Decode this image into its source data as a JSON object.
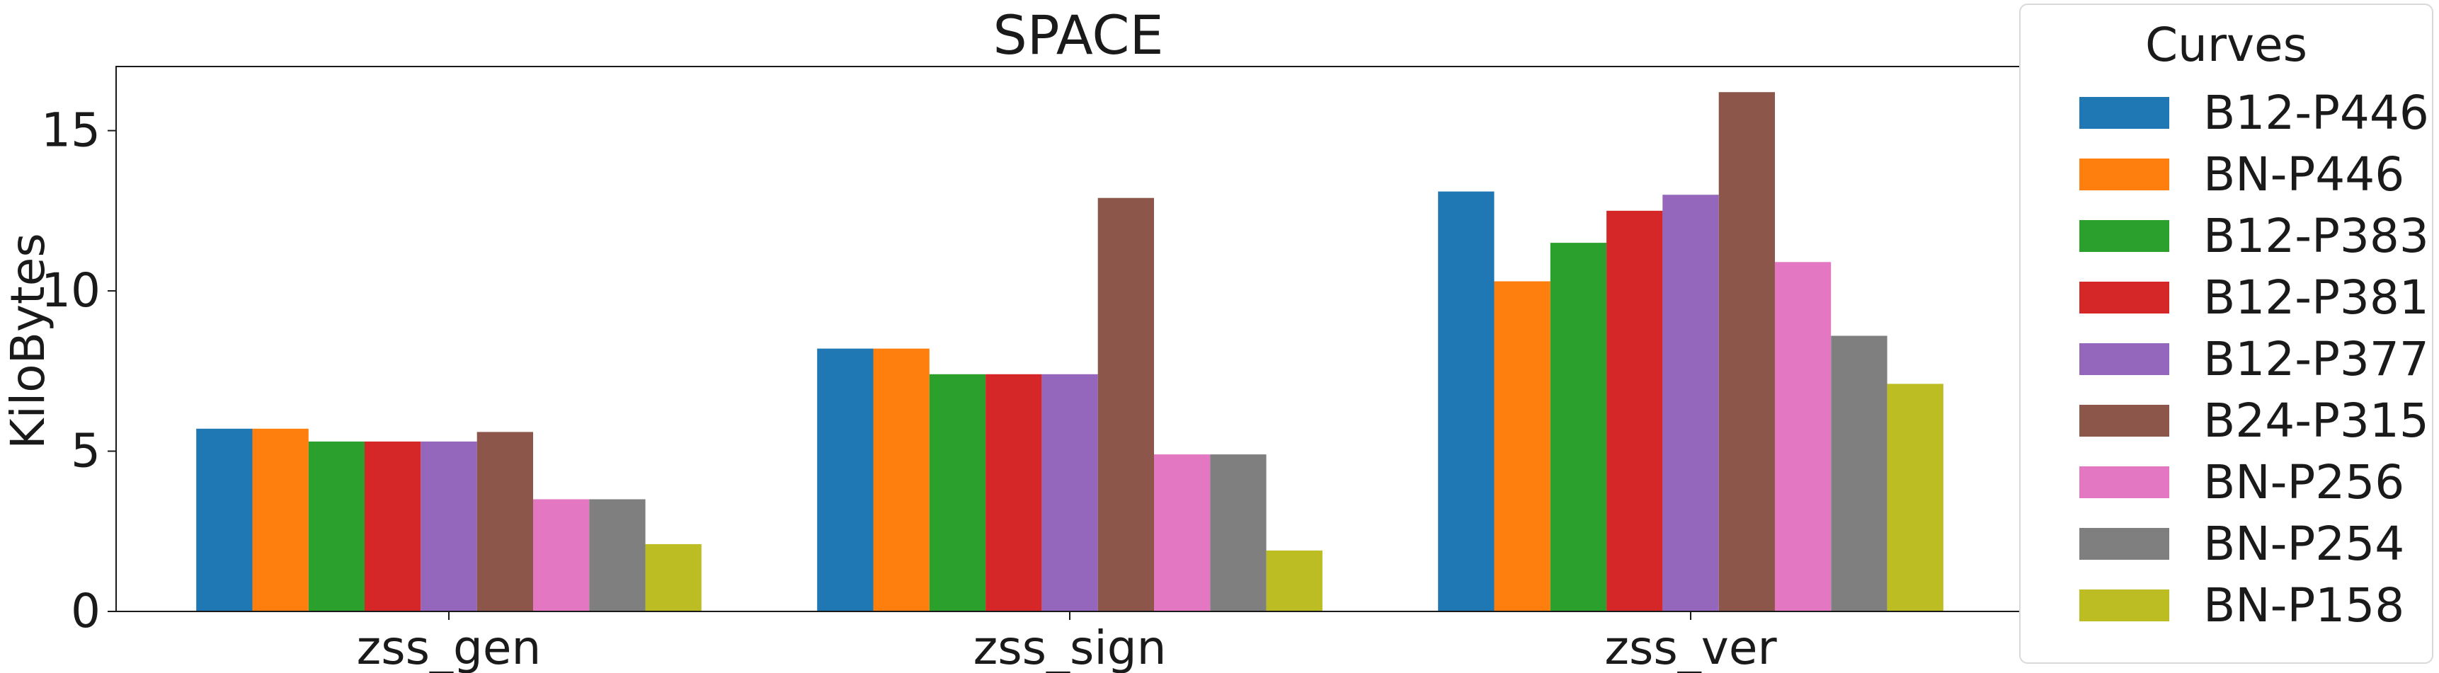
{
  "chart_data": {
    "type": "bar",
    "title": "SPACE",
    "xlabel": "",
    "ylabel": "KiloBytes",
    "ylim": [
      0,
      17
    ],
    "yticks": [
      0,
      5,
      10,
      15
    ],
    "categories": [
      "zss_gen",
      "zss_sign",
      "zss_ver"
    ],
    "series": [
      {
        "name": "B12-P446",
        "color": "#1f77b4",
        "values": [
          5.7,
          8.2,
          13.1
        ]
      },
      {
        "name": "BN-P446",
        "color": "#ff7f0e",
        "values": [
          5.7,
          8.2,
          10.3
        ]
      },
      {
        "name": "B12-P383",
        "color": "#2ca02c",
        "values": [
          5.3,
          7.4,
          11.5
        ]
      },
      {
        "name": "B12-P381",
        "color": "#d62728",
        "values": [
          5.3,
          7.4,
          12.5
        ]
      },
      {
        "name": "B12-P377",
        "color": "#9467bd",
        "values": [
          5.3,
          7.4,
          13.0
        ]
      },
      {
        "name": "B24-P315",
        "color": "#8c564b",
        "values": [
          5.6,
          12.9,
          16.2
        ]
      },
      {
        "name": "BN-P256",
        "color": "#e377c2",
        "values": [
          3.5,
          4.9,
          10.9
        ]
      },
      {
        "name": "BN-P254",
        "color": "#7f7f7f",
        "values": [
          3.5,
          4.9,
          8.6
        ]
      },
      {
        "name": "BN-P158",
        "color": "#bcbd22",
        "values": [
          2.1,
          1.9,
          7.1
        ]
      }
    ],
    "grid": false,
    "legend": {
      "title": "Curves",
      "placement": "outside-right"
    }
  }
}
